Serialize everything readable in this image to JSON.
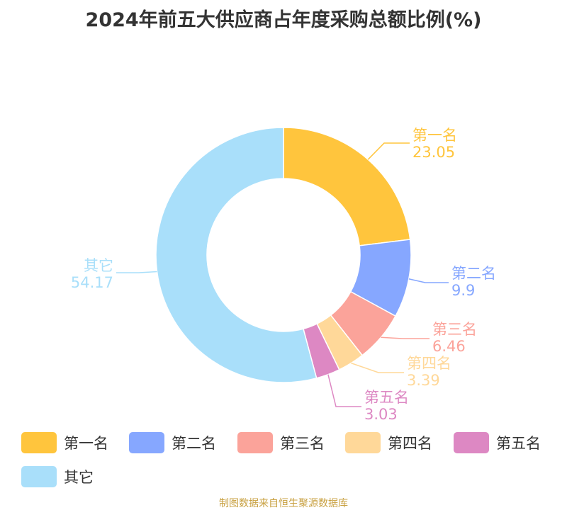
{
  "chart_data": {
    "type": "pie",
    "title": "2024年前五大供应商占年度采购总额比例(%)",
    "donut": true,
    "legend_position": "bottom",
    "slices": [
      {
        "label": "第一名",
        "value": 23.05,
        "color": "#FFC53D"
      },
      {
        "label": "第二名",
        "value": 9.9,
        "color": "#86A7FF"
      },
      {
        "label": "第三名",
        "value": 6.46,
        "color": "#FBA39A"
      },
      {
        "label": "第四名",
        "value": 3.39,
        "color": "#FFD899"
      },
      {
        "label": "第五名",
        "value": 3.03,
        "color": "#DD88C3"
      },
      {
        "label": "其它",
        "value": 54.17,
        "color": "#A9DFFA"
      }
    ]
  },
  "footer": {
    "source": "制图数据来自恒生聚源数据库"
  }
}
